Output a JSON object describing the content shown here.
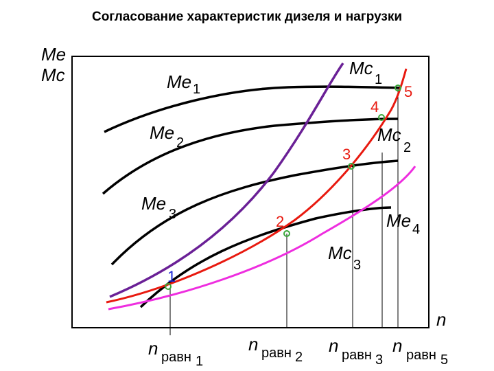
{
  "title": "Согласование характеристик дизеля и нагрузки",
  "chart_data": {
    "type": "line",
    "title": "Согласование характеристик дизеля и нагрузки",
    "ylabel": [
      "Me",
      "Mc"
    ],
    "xlabel": "n",
    "grid": false,
    "ticks_x": [
      {
        "main": "n",
        "sub": "равн",
        "idx": "1"
      },
      {
        "main": "n",
        "sub": "равн",
        "idx": "2"
      },
      {
        "main": "n",
        "sub": "равн",
        "idx": "3"
      },
      {
        "main": "n",
        "sub": "равн",
        "idx": "5"
      }
    ],
    "series": [
      {
        "name": "Me 1",
        "kind": "engine",
        "color": "#000000"
      },
      {
        "name": "Me 2",
        "kind": "engine",
        "color": "#000000"
      },
      {
        "name": "Me 3",
        "kind": "engine",
        "color": "#000000"
      },
      {
        "name": "Me 4",
        "kind": "engine",
        "color": "#000000"
      },
      {
        "name": "Mc 1",
        "kind": "load",
        "color": "#6a2096"
      },
      {
        "name": "Mc 2",
        "kind": "load",
        "color": "#e8190f"
      },
      {
        "name": "Mc 3",
        "kind": "load",
        "color": "#ee2ddf"
      }
    ],
    "points": [
      {
        "label": "1",
        "color": "#1a25d6"
      },
      {
        "label": "2",
        "color": "#e8190f"
      },
      {
        "label": "3",
        "color": "#e8190f"
      },
      {
        "label": "4",
        "color": "#e8190f"
      },
      {
        "label": "5",
        "color": "#e8190f"
      }
    ],
    "marker_color": "#3aa83a"
  }
}
